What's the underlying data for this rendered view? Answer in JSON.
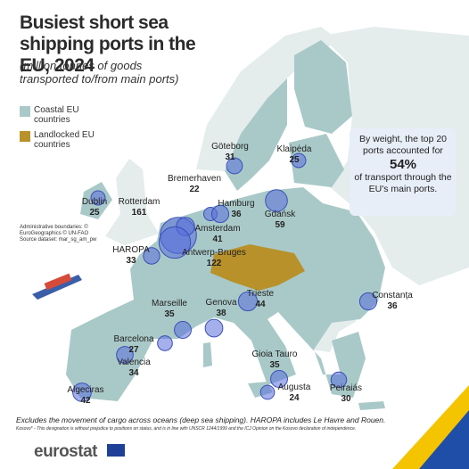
{
  "header": {
    "title": "Busiest short sea shipping ports in the EU, 2024",
    "subtitle": "(million tonnes of goods transported to/from main ports)"
  },
  "legend": [
    "Coastal EU countries",
    "Landlocked EU countries"
  ],
  "callout": {
    "before": "By weight, the top 20 ports accounted for",
    "highlight": "54%",
    "after": "of transport through the EU's main ports."
  },
  "ports": [
    {
      "name": "Göteborg",
      "value": 31
    },
    {
      "name": "Bremerhaven",
      "value": 22
    },
    {
      "name": "Klaipėda",
      "value": 25
    },
    {
      "name": "Dublin",
      "value": 25
    },
    {
      "name": "Rotterdam",
      "value": 161
    },
    {
      "name": "Hamburg",
      "value": 36
    },
    {
      "name": "Gdańsk",
      "value": 59
    },
    {
      "name": "Amsterdam",
      "value": 41
    },
    {
      "name": "HAROPA",
      "value": 33
    },
    {
      "name": "Antwerp-Bruges",
      "value": 122
    },
    {
      "name": "Trieste",
      "value": 44
    },
    {
      "name": "Constanța",
      "value": 36
    },
    {
      "name": "Marseille",
      "value": 35
    },
    {
      "name": "Genova",
      "value": 38
    },
    {
      "name": "Barcelona",
      "value": 27
    },
    {
      "name": "Gioia Tauro",
      "value": 35
    },
    {
      "name": "Valencia",
      "value": 34
    },
    {
      "name": "Algeciras",
      "value": 42
    },
    {
      "name": "Augusta",
      "value": 24
    },
    {
      "name": "Peiraiás",
      "value": 30
    }
  ],
  "admin_note": "Administrative boundaries: © EuroGeographics © UN-FAO Source dataset: mar_sg_am_pw",
  "footnote": "Excludes the movement of cargo across oceans (deep sea shipping). HAROPA includes Le Havre and Rouen.",
  "kosovo_note": "Kosovo* - This designation is without prejudice to positions on status, and is in line with UNSCR 1244/1999 and the ICJ Opinion on the Kosovo declaration of independence.",
  "logo": "eurostat"
}
